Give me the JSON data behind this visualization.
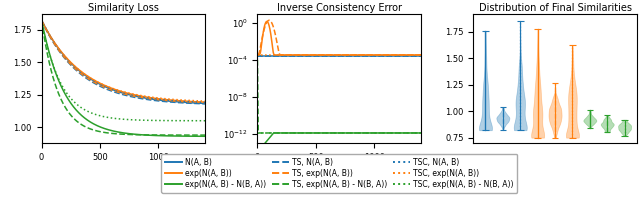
{
  "title1": "Similarity Loss",
  "title2": "Inverse Consistency Error",
  "title3": "Distribution of Final Similarities",
  "blue": "#1f77b4",
  "orange": "#ff7f0e",
  "green": "#2ca02c",
  "legend_labels": [
    "N(A, B)",
    "exp(N(A, B))",
    "exp(N(A, B) - N(B, A))",
    "TS, N(A, B)",
    "TS, exp(N(A, B))",
    "TS, exp(N(A, B) - N(B, A))",
    "TSC, N(A, B)",
    "TSC, exp(N(A, B))",
    "TSC, exp(N(A, B) - N(B, A))"
  ]
}
